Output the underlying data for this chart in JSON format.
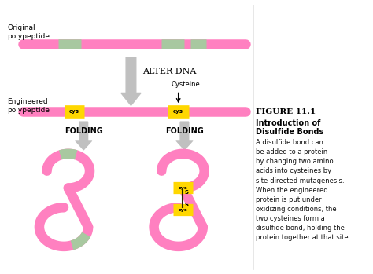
{
  "bg_color": "#ffffff",
  "pink": "#FF80C0",
  "green": "#A8C8A0",
  "yellow": "#FFD700",
  "gray_arrow": "#C0C0C0",
  "label_original": "Original\npolypeptide",
  "label_engineered": "Engineered\npolypeptide",
  "label_alter_dna": "ALTER DNA",
  "label_cysteine": "Cysteine",
  "label_folding1": "FOLDING",
  "label_folding2": "FOLDING",
  "label_cys": "cys",
  "figure_title": "FIGURE 11.1",
  "figure_subtitle1": "Introduction of",
  "figure_subtitle2": "Disulfide Bonds",
  "figure_body": "A disulfide bond can\nbe added to a protein\nby changing two amino\nacids into cysteines by\nsite-directed mutagenesis.\nWhen the engineered\nprotein is put under\noxidizing conditions, the\ntwo cysteines form a\ndisulfide bond, holding the\nprotein together at that site."
}
